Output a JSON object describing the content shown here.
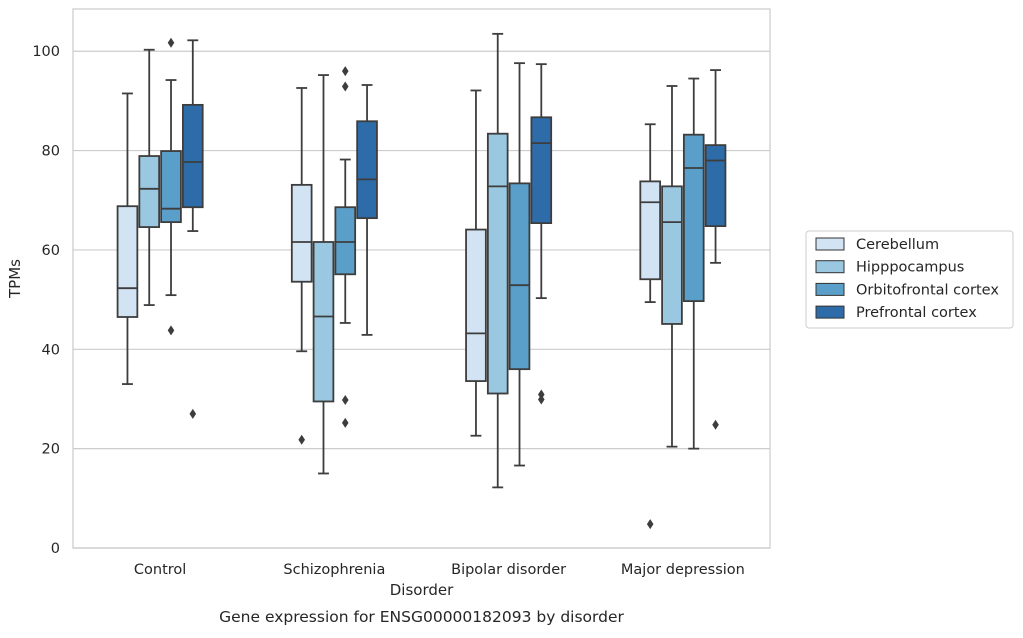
{
  "chart_data": {
    "type": "box",
    "caption": "Gene expression for ENSG00000182093 by disorder",
    "xlabel": "Disorder",
    "ylabel": "TPMs",
    "ylim": [
      0,
      108.5
    ],
    "yticks": [
      0,
      20,
      40,
      60,
      80,
      100
    ],
    "grid": "horizontal",
    "legend_position": "right",
    "categories": [
      "Control",
      "Schizophrenia",
      "Bipolar disorder",
      "Major depression"
    ],
    "series": [
      {
        "name": "Cerebellum",
        "color": "#d2e3f3",
        "boxes": [
          {
            "whisker_low": 33,
            "q1": 46.5,
            "median": 52.3,
            "q3": 68.8,
            "whisker_high": 91.5,
            "outliers": []
          },
          {
            "whisker_low": 39.6,
            "q1": 53.6,
            "median": 61.6,
            "q3": 73.1,
            "whisker_high": 92.6,
            "outliers": [
              21.8
            ]
          },
          {
            "whisker_low": 22.6,
            "q1": 33.6,
            "median": 43.2,
            "q3": 64.1,
            "whisker_high": 92.1,
            "outliers": []
          },
          {
            "whisker_low": 49.5,
            "q1": 54.1,
            "median": 69.6,
            "q3": 73.8,
            "whisker_high": 85.3,
            "outliers": [
              4.8
            ]
          }
        ]
      },
      {
        "name": "Hipppocampus",
        "color": "#9ac8e0",
        "boxes": [
          {
            "whisker_low": 48.9,
            "q1": 64.6,
            "median": 72.3,
            "q3": 78.9,
            "whisker_high": 100.3,
            "outliers": []
          },
          {
            "whisker_low": 15,
            "q1": 29.5,
            "median": 46.6,
            "q3": 61.6,
            "whisker_high": 95.2,
            "outliers": []
          },
          {
            "whisker_low": 12.2,
            "q1": 31.1,
            "median": 72.8,
            "q3": 83.4,
            "whisker_high": 103.5,
            "outliers": []
          },
          {
            "whisker_low": 20.4,
            "q1": 45.1,
            "median": 65.6,
            "q3": 72.8,
            "whisker_high": 93,
            "outliers": []
          }
        ]
      },
      {
        "name": "Orbitofrontal cortex",
        "color": "#5a9fc9",
        "boxes": [
          {
            "whisker_low": 50.9,
            "q1": 65.6,
            "median": 68.3,
            "q3": 79.9,
            "whisker_high": 94.2,
            "outliers": [
              43.8,
              101.7
            ]
          },
          {
            "whisker_low": 45.3,
            "q1": 55.1,
            "median": 61.6,
            "q3": 68.6,
            "whisker_high": 78.2,
            "outliers": [
              25.2,
              29.8,
              92.9,
              96
            ]
          },
          {
            "whisker_low": 16.6,
            "q1": 36,
            "median": 52.9,
            "q3": 73.4,
            "whisker_high": 97.6,
            "outliers": []
          },
          {
            "whisker_low": 20,
            "q1": 49.7,
            "median": 76.5,
            "q3": 83.2,
            "whisker_high": 94.5,
            "outliers": []
          }
        ]
      },
      {
        "name": "Prefrontal cortex",
        "color": "#2d6ca9",
        "boxes": [
          {
            "whisker_low": 63.8,
            "q1": 68.6,
            "median": 77.7,
            "q3": 89.2,
            "whisker_high": 102.2,
            "outliers": [
              27
            ]
          },
          {
            "whisker_low": 42.9,
            "q1": 66.4,
            "median": 74.2,
            "q3": 85.9,
            "whisker_high": 93.2,
            "outliers": []
          },
          {
            "whisker_low": 50.3,
            "q1": 65.4,
            "median": 81.5,
            "q3": 86.7,
            "whisker_high": 97.4,
            "outliers": [
              29.9,
              30.9
            ]
          },
          {
            "whisker_low": 57.4,
            "q1": 64.8,
            "median": 78,
            "q3": 81.1,
            "whisker_high": 96.2,
            "outliers": [
              24.8
            ]
          }
        ]
      }
    ]
  }
}
